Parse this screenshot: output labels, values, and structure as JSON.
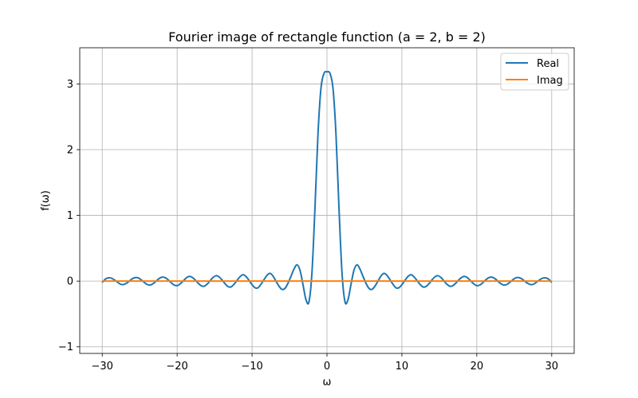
{
  "chart_data": {
    "type": "line",
    "title": "Fourier image of rectangle function (a = 2, b = 2)",
    "xlabel": "ω",
    "ylabel": "f(ω)",
    "xlim": [
      -33,
      33
    ],
    "ylim": [
      -1.1,
      3.55
    ],
    "xticks": [
      -30,
      -20,
      -10,
      0,
      10,
      20,
      30
    ],
    "xtick_labels": [
      "−30",
      "−20",
      "−10",
      "0",
      "10",
      "20",
      "30"
    ],
    "yticks": [
      -1,
      0,
      1,
      2,
      3
    ],
    "ytick_labels": [
      "−1",
      "0",
      "1",
      "2",
      "3"
    ],
    "grid": true,
    "legend_position": "top-right",
    "series": [
      {
        "name": "Real",
        "color": "#1f77b4",
        "x": [
          -30,
          -29.6,
          -29.2,
          -28.8,
          -28.4,
          -28.0,
          -27.6,
          -27.2,
          -26.8,
          -26.4,
          -26.0,
          -25.6,
          -25.2,
          -24.8,
          -24.4,
          -24.0,
          -23.6,
          -23.2,
          -22.8,
          -22.4,
          -22.0,
          -21.6,
          -21.2,
          -20.8,
          -20.4,
          -20.0,
          -19.6,
          -19.2,
          -18.8,
          -18.4,
          -18.0,
          -17.6,
          -17.2,
          -16.8,
          -16.4,
          -16.0,
          -15.6,
          -15.2,
          -14.8,
          -14.4,
          -14.0,
          -13.6,
          -13.2,
          -12.8,
          -12.4,
          -12.0,
          -11.6,
          -11.2,
          -10.8,
          -10.4,
          -10.0,
          -9.6,
          -9.2,
          -8.8,
          -8.4,
          -8.0,
          -7.6,
          -7.2,
          -6.8,
          -6.4,
          -6.0,
          -5.6,
          -5.2,
          -4.8,
          -4.4,
          -4.0,
          -3.6,
          -3.2,
          -2.8,
          -2.4,
          -2.0,
          -1.6,
          -1.2,
          -0.8,
          -0.4,
          0.0,
          0.4,
          0.8,
          1.2,
          1.6,
          2.0,
          2.4,
          2.8,
          3.2,
          3.6,
          4.0,
          4.4,
          4.8,
          5.2,
          5.6,
          6.0,
          6.4,
          6.8,
          7.2,
          7.6,
          8.0,
          8.4,
          8.8,
          9.2,
          9.6,
          10.0,
          10.4,
          10.8,
          11.2,
          11.6,
          12.0,
          12.4,
          12.8,
          13.2,
          13.6,
          14.0,
          14.4,
          14.8,
          15.2,
          15.6,
          16.0,
          16.4,
          16.8,
          17.2,
          17.6,
          18.0,
          18.4,
          18.8,
          19.2,
          19.6,
          20.0,
          20.4,
          20.8,
          21.2,
          21.6,
          22.0,
          22.4,
          22.8,
          23.2,
          23.6,
          24.0,
          24.4,
          24.8,
          25.2,
          25.6,
          26.0,
          26.4,
          26.8,
          27.2,
          27.6,
          28.0,
          28.4,
          28.8,
          29.2,
          29.6,
          30
        ],
        "y": [
          -0.02,
          0.029,
          0.049,
          0.045,
          0.02,
          -0.013,
          -0.045,
          -0.053,
          -0.035,
          -0.001,
          0.035,
          0.054,
          0.049,
          0.02,
          -0.019,
          -0.051,
          -0.06,
          -0.038,
          0.0,
          0.04,
          0.061,
          0.053,
          0.02,
          -0.024,
          -0.059,
          -0.069,
          -0.042,
          0.002,
          0.047,
          0.071,
          0.058,
          0.019,
          -0.031,
          -0.069,
          -0.078,
          -0.046,
          0.005,
          0.056,
          0.083,
          0.064,
          0.016,
          -0.04,
          -0.083,
          -0.088,
          -0.047,
          0.011,
          0.068,
          0.098,
          0.07,
          0.01,
          -0.054,
          -0.101,
          -0.101,
          -0.046,
          0.023,
          0.089,
          0.118,
          0.076,
          -0.002,
          -0.078,
          -0.126,
          -0.11,
          -0.031,
          0.074,
          0.184,
          0.248,
          0.165,
          -0.054,
          -0.284,
          -0.313,
          0.137,
          1.12,
          2.238,
          2.936,
          3.16,
          3.183,
          3.16,
          2.936,
          2.238,
          1.12,
          0.137,
          -0.313,
          -0.284,
          -0.054,
          0.165,
          0.248,
          0.184,
          0.074,
          -0.031,
          -0.11,
          -0.126,
          -0.078,
          -0.002,
          0.076,
          0.118,
          0.089,
          0.023,
          -0.046,
          -0.101,
          -0.101,
          -0.054,
          0.01,
          0.07,
          0.098,
          0.068,
          0.011,
          -0.047,
          -0.088,
          -0.083,
          -0.04,
          0.016,
          0.064,
          0.083,
          0.056,
          0.005,
          -0.046,
          -0.078,
          -0.069,
          -0.031,
          0.019,
          0.058,
          0.071,
          0.047,
          0.002,
          -0.042,
          -0.069,
          -0.059,
          -0.024,
          0.02,
          0.053,
          0.061,
          0.04,
          0.0,
          -0.038,
          -0.06,
          -0.051,
          -0.019,
          0.02,
          0.049,
          0.054,
          0.035,
          -0.001,
          -0.035,
          -0.053,
          -0.045,
          -0.013,
          0.02,
          0.045,
          0.049,
          0.029,
          -0.02
        ]
      },
      {
        "name": "Imag",
        "color": "#ff7f0e",
        "x": [
          -30,
          30
        ],
        "y": [
          0,
          0
        ]
      }
    ]
  }
}
